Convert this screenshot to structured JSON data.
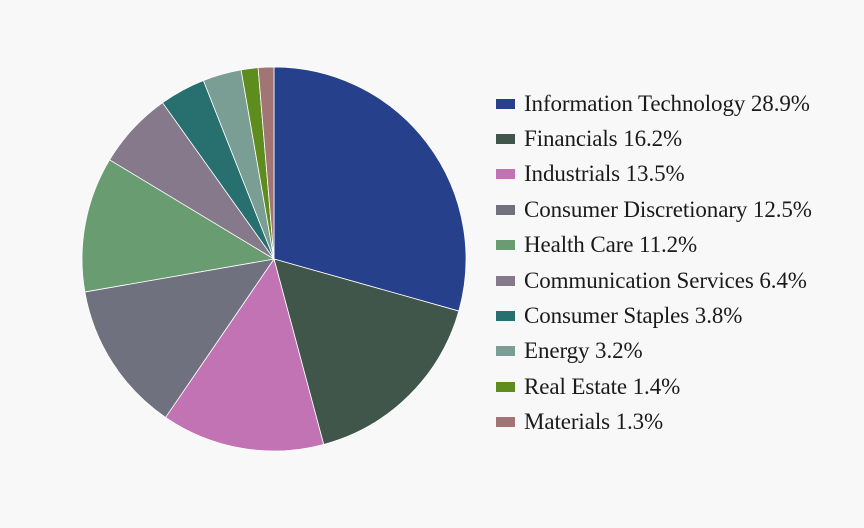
{
  "chart_data": {
    "type": "pie",
    "categories": [
      "Information Technology",
      "Financials",
      "Industrials",
      "Consumer Discretionary",
      "Health Care",
      "Communication Services",
      "Consumer Staples",
      "Energy",
      "Real Estate",
      "Materials"
    ],
    "values": [
      28.9,
      16.2,
      13.5,
      12.5,
      11.2,
      6.4,
      3.8,
      3.2,
      1.4,
      1.3
    ],
    "legend_labels": [
      "Information Technology 28.9%",
      "Financials 16.2%",
      "Industrials 13.5%",
      "Consumer Discretionary 12.5%",
      "Health Care 11.2%",
      "Communication Services 6.4%",
      "Consumer Staples 3.8%",
      "Energy 3.2%",
      "Real Estate 1.4%",
      "Materials 1.3%"
    ],
    "colors": [
      "#26408b",
      "#41564a",
      "#c173b3",
      "#6f717f",
      "#6a9c72",
      "#86798b",
      "#27706f",
      "#7b9e94",
      "#5f8c1f",
      "#a27575"
    ],
    "legend_position": "right",
    "start_angle": "12 o'clock",
    "direction": "clockwise"
  }
}
